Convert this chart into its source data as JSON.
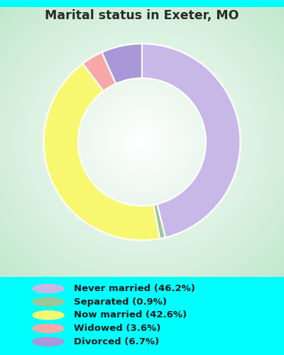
{
  "title": "Marital status in Exeter, MO",
  "title_color": "#2a2a2a",
  "background_color": "#00ffff",
  "chart_bg_color": "#cce8d4",
  "slices": [
    {
      "label": "Never married (46.2%)",
      "value": 46.2,
      "color": "#c8b8e8"
    },
    {
      "label": "Separated (0.9%)",
      "value": 0.9,
      "color": "#98c898"
    },
    {
      "label": "Now married (42.6%)",
      "value": 42.6,
      "color": "#f8f870"
    },
    {
      "label": "Widowed (3.6%)",
      "value": 3.6,
      "color": "#f8a8a8"
    },
    {
      "label": "Divorced (6.7%)",
      "value": 6.7,
      "color": "#a898d8"
    }
  ],
  "legend_colors": [
    "#c8b8e8",
    "#98c898",
    "#f8f870",
    "#f8a8a8",
    "#a898d8"
  ],
  "legend_labels": [
    "Never married (46.2%)",
    "Separated (0.9%)",
    "Now married (42.6%)",
    "Widowed (3.6%)",
    "Divorced (6.7%)"
  ],
  "figsize": [
    4.0,
    5.0
  ],
  "dpi": 100
}
